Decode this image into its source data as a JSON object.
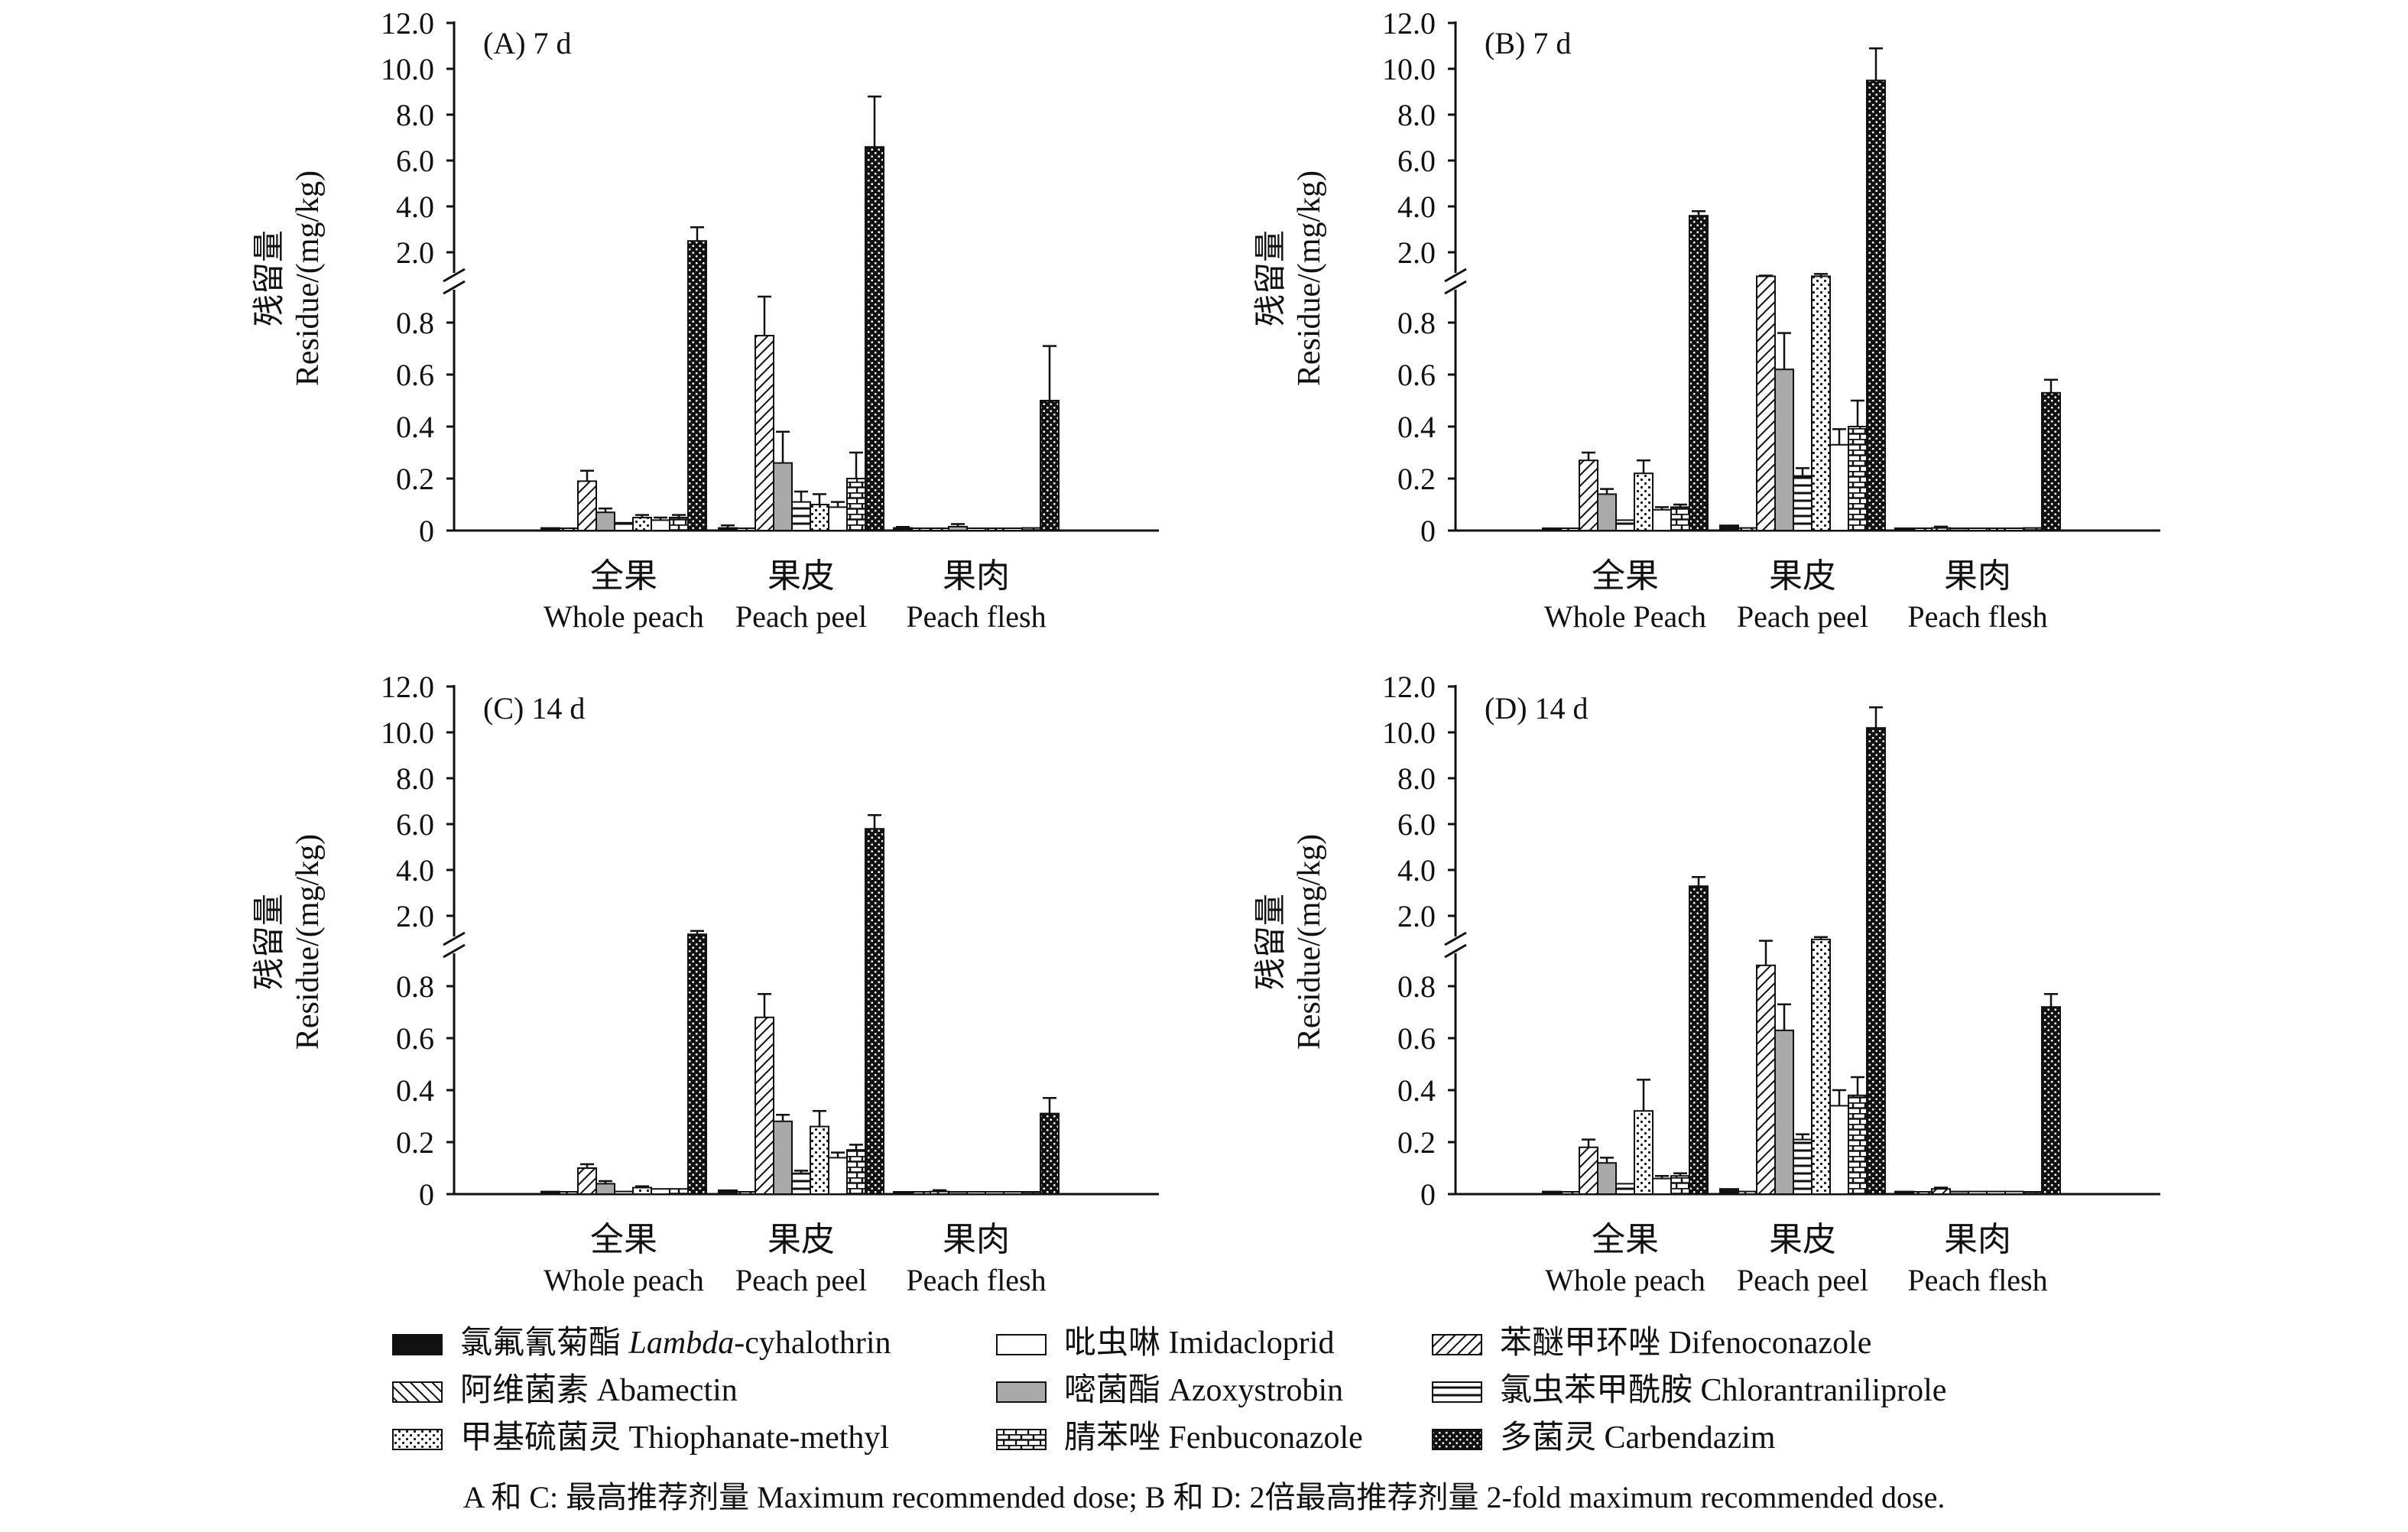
{
  "y_tick_labels_upper": [
    "2.0",
    "4.0",
    "6.0",
    "8.0",
    "10.0",
    "12.0"
  ],
  "y_tick_labels_lower": [
    "0",
    "0.2",
    "0.4",
    "0.6",
    "0.8"
  ],
  "ylabel_cn": "残留量",
  "ylabel_en": "Residue/(mg/kg)",
  "legend": [
    {
      "cn": "氯氟氰菊酯 ",
      "en_italic": "Lambda",
      "en": "-cyhalothrin",
      "pattern": "solid"
    },
    {
      "cn": "吡虫啉 ",
      "en_italic": "",
      "en": "Imidacloprid",
      "pattern": "white"
    },
    {
      "cn": "苯醚甲环唑 ",
      "en_italic": "",
      "en": "Difenoconazole",
      "pattern": "diag-right"
    },
    {
      "cn": "阿维菌素 ",
      "en_italic": "",
      "en": "Abamectin",
      "pattern": "diag-left"
    },
    {
      "cn": "嘧菌酯 ",
      "en_italic": "",
      "en": "Azoxystrobin",
      "pattern": "gray"
    },
    {
      "cn": "氯虫苯甲酰胺 ",
      "en_italic": "",
      "en": "Chlorantraniliprole",
      "pattern": "hlines"
    },
    {
      "cn": "甲基硫菌灵 ",
      "en_italic": "",
      "en": "Thiophanate-methyl",
      "pattern": "dots"
    },
    {
      "cn": "腈苯唑 ",
      "en_italic": "",
      "en": "Fenbuconazole",
      "pattern": "brick"
    },
    {
      "cn": "多菌灵 ",
      "en_italic": "",
      "en": "Carbendazim",
      "pattern": "dense-dots"
    }
  ],
  "caption": "A 和 C: 最高推荐剂量 Maximum recommended dose; B 和 D: 2倍最高推荐剂量 2-fold maximum recommended dose.",
  "chart_data": [
    {
      "type": "bar",
      "panel_title": "(A) 7 d",
      "categories_cn": [
        "全果",
        "果皮",
        "果肉"
      ],
      "categories_en": [
        "Whole peach",
        "Peach peel",
        "Peach flesh"
      ],
      "ylabel": "残留量 Residue/(mg/kg)",
      "ylim_lower": [
        0,
        0.9
      ],
      "ylim_upper": [
        1,
        12
      ],
      "series": [
        {
          "name": "Lambda-cyhalothrin",
          "values": [
            0.01,
            0.01,
            0.01
          ],
          "errors": [
            0,
            0.01,
            0.004
          ]
        },
        {
          "name": "Abamectin",
          "values": [
            0.005,
            0.005,
            0.005
          ],
          "errors": [
            0,
            0,
            0
          ]
        },
        {
          "name": "Difenoconazole",
          "values": [
            0.19,
            0.75,
            0.005
          ],
          "errors": [
            0.04,
            0.15,
            0
          ]
        },
        {
          "name": "Azoxystrobin",
          "values": [
            0.07,
            0.26,
            0.015
          ],
          "errors": [
            0.015,
            0.12,
            0.01
          ]
        },
        {
          "name": "Chlorantraniliprole",
          "values": [
            0.03,
            0.11,
            0.005
          ],
          "errors": [
            0,
            0.04,
            0
          ]
        },
        {
          "name": "Thiophanate-methyl",
          "values": [
            0.05,
            0.1,
            0.005
          ],
          "errors": [
            0.01,
            0.04,
            0
          ]
        },
        {
          "name": "Imidacloprid",
          "values": [
            0.04,
            0.09,
            0.005
          ],
          "errors": [
            0.01,
            0.02,
            0
          ]
        },
        {
          "name": "Fenbuconazole",
          "values": [
            0.05,
            0.2,
            0.01
          ],
          "errors": [
            0.01,
            0.1,
            0
          ]
        },
        {
          "name": "Carbendazim",
          "values": [
            2.5,
            6.6,
            0.5
          ],
          "errors": [
            0.6,
            2.2,
            0.21
          ]
        }
      ]
    },
    {
      "type": "bar",
      "panel_title": "(B) 7 d",
      "categories_cn": [
        "全果",
        "果皮",
        "果肉"
      ],
      "categories_en": [
        "Whole Peach",
        "Peach peel",
        "Peach flesh"
      ],
      "ylabel": "残留量 Residue/(mg/kg)",
      "ylim_lower": [
        0,
        0.9
      ],
      "ylim_upper": [
        1,
        12
      ],
      "series": [
        {
          "name": "Lambda-cyhalothrin",
          "values": [
            0.005,
            0.02,
            0.005
          ],
          "errors": [
            0,
            0,
            0
          ]
        },
        {
          "name": "Abamectin",
          "values": [
            0.005,
            0.01,
            0.005
          ],
          "errors": [
            0,
            0,
            0
          ]
        },
        {
          "name": "Difenoconazole",
          "values": [
            0.27,
            0.96,
            0.01
          ],
          "errors": [
            0.03,
            0.03,
            0.005
          ]
        },
        {
          "name": "Azoxystrobin",
          "values": [
            0.14,
            0.62,
            0.005
          ],
          "errors": [
            0.02,
            0.14,
            0
          ]
        },
        {
          "name": "Chlorantraniliprole",
          "values": [
            0.04,
            0.21,
            0.005
          ],
          "errors": [
            0,
            0.03,
            0
          ]
        },
        {
          "name": "Thiophanate-methyl",
          "values": [
            0.22,
            0.96,
            0.005
          ],
          "errors": [
            0.05,
            0.1,
            0
          ]
        },
        {
          "name": "Imidacloprid",
          "values": [
            0.08,
            0.33,
            0.005
          ],
          "errors": [
            0.01,
            0.06,
            0
          ]
        },
        {
          "name": "Fenbuconazole",
          "values": [
            0.09,
            0.4,
            0.01
          ],
          "errors": [
            0.01,
            0.1,
            0
          ]
        },
        {
          "name": "Carbendazim",
          "values": [
            3.6,
            9.5,
            0.53
          ],
          "errors": [
            0.2,
            1.4,
            0.05
          ]
        }
      ]
    },
    {
      "type": "bar",
      "panel_title": "(C) 14 d",
      "categories_cn": [
        "全果",
        "果皮",
        "果肉"
      ],
      "categories_en": [
        "Whole peach",
        "Peach peel",
        "Peach flesh"
      ],
      "ylabel": "残留量 Residue/(mg/kg)",
      "ylim_lower": [
        0,
        0.9
      ],
      "ylim_upper": [
        1,
        12
      ],
      "series": [
        {
          "name": "Lambda-cyhalothrin",
          "values": [
            0.01,
            0.015,
            0.005
          ],
          "errors": [
            0,
            0,
            0
          ]
        },
        {
          "name": "Abamectin",
          "values": [
            0.005,
            0.005,
            0.005
          ],
          "errors": [
            0,
            0,
            0
          ]
        },
        {
          "name": "Difenoconazole",
          "values": [
            0.1,
            0.68,
            0.01
          ],
          "errors": [
            0.015,
            0.09,
            0.005
          ]
        },
        {
          "name": "Azoxystrobin",
          "values": [
            0.04,
            0.28,
            0.005
          ],
          "errors": [
            0.01,
            0.025,
            0
          ]
        },
        {
          "name": "Chlorantraniliprole",
          "values": [
            0.01,
            0.08,
            0.005
          ],
          "errors": [
            0,
            0.01,
            0
          ]
        },
        {
          "name": "Thiophanate-methyl",
          "values": [
            0.025,
            0.26,
            0.005
          ],
          "errors": [
            0.005,
            0.06,
            0
          ]
        },
        {
          "name": "Imidacloprid",
          "values": [
            0.02,
            0.14,
            0.005
          ],
          "errors": [
            0,
            0.02,
            0
          ]
        },
        {
          "name": "Fenbuconazole",
          "values": [
            0.02,
            0.17,
            0.005
          ],
          "errors": [
            0,
            0.02,
            0
          ]
        },
        {
          "name": "Carbendazim",
          "values": [
            1.2,
            5.8,
            0.31
          ],
          "errors": [
            0.15,
            0.6,
            0.06
          ]
        }
      ]
    },
    {
      "type": "bar",
      "panel_title": "(D) 14 d",
      "categories_cn": [
        "全果",
        "果皮",
        "果肉"
      ],
      "categories_en": [
        "Whole peach",
        "Peach peel",
        "Peach flesh"
      ],
      "ylabel": "残留量 Residue/(mg/kg)",
      "ylim_lower": [
        0,
        0.9
      ],
      "ylim_upper": [
        1,
        12
      ],
      "series": [
        {
          "name": "Lambda-cyhalothrin",
          "values": [
            0.01,
            0.02,
            0.01
          ],
          "errors": [
            0,
            0,
            0
          ]
        },
        {
          "name": "Abamectin",
          "values": [
            0.005,
            0.01,
            0.005
          ],
          "errors": [
            0,
            0,
            0
          ]
        },
        {
          "name": "Difenoconazole",
          "values": [
            0.18,
            0.88,
            0.02
          ],
          "errors": [
            0.03,
            0.04,
            0.005
          ]
        },
        {
          "name": "Azoxystrobin",
          "values": [
            0.12,
            0.63,
            0.01
          ],
          "errors": [
            0.02,
            0.1,
            0
          ]
        },
        {
          "name": "Chlorantraniliprole",
          "values": [
            0.04,
            0.21,
            0.01
          ],
          "errors": [
            0,
            0.02,
            0
          ]
        },
        {
          "name": "Thiophanate-methyl",
          "values": [
            0.32,
            0.98,
            0.01
          ],
          "errors": [
            0.12,
            0.1,
            0
          ]
        },
        {
          "name": "Imidacloprid",
          "values": [
            0.06,
            0.34,
            0.01
          ],
          "errors": [
            0.01,
            0.06,
            0
          ]
        },
        {
          "name": "Fenbuconazole",
          "values": [
            0.07,
            0.38,
            0.005
          ],
          "errors": [
            0.01,
            0.07,
            0
          ]
        },
        {
          "name": "Carbendazim",
          "values": [
            3.3,
            10.2,
            0.72
          ],
          "errors": [
            0.4,
            0.9,
            0.05
          ]
        }
      ]
    }
  ]
}
